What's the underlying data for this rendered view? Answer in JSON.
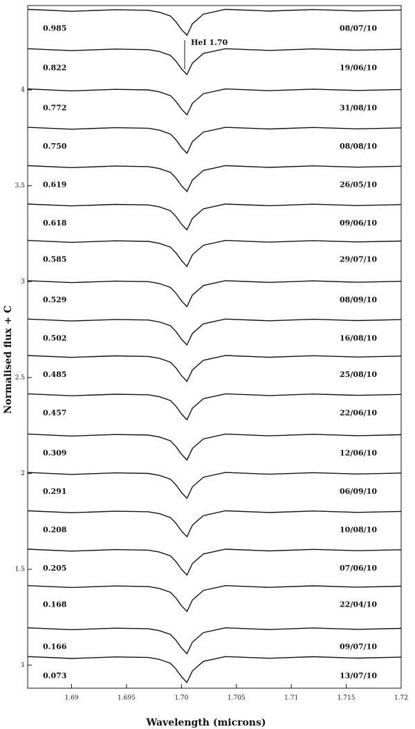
{
  "chart_data": {
    "type": "line",
    "xlabel": "Wavelength (microns)",
    "ylabel": "Normalised flux + C",
    "annotation": "HeI 1.70",
    "color": "#111111",
    "xlim": [
      1.686,
      1.72
    ],
    "ylim": [
      0.88,
      4.44
    ],
    "xticks": [
      1.69,
      1.695,
      {
        "value": 1.7,
        "label": "1.70"
      },
      1.705,
      1.71,
      1.715,
      1.72
    ],
    "yticks": [
      1,
      1.5,
      2,
      2.5,
      3,
      3.5,
      4
    ],
    "x": [
      1.686,
      1.69,
      1.694,
      1.697,
      1.698,
      1.699,
      1.6995,
      1.7,
      1.7005,
      1.701,
      1.702,
      1.704,
      1.708,
      1.712,
      1.716,
      1.72
    ],
    "series": [
      {
        "phase": "0.985",
        "date": "08/07/10",
        "values": [
          4.42,
          4.41,
          4.418,
          4.415,
          4.405,
          4.385,
          4.355,
          4.315,
          4.285,
          4.345,
          4.395,
          4.42,
          4.411,
          4.419,
          4.412,
          4.417
        ]
      },
      {
        "phase": "0.822",
        "date": "19/06/10",
        "values": [
          4.215,
          4.205,
          4.213,
          4.21,
          4.2,
          4.18,
          4.15,
          4.11,
          4.08,
          4.14,
          4.19,
          4.215,
          4.206,
          4.214,
          4.207,
          4.212
        ]
      },
      {
        "phase": "0.772",
        "date": "31/08/10",
        "values": [
          4.005,
          3.995,
          4.003,
          4.0,
          3.99,
          3.97,
          3.94,
          3.9,
          3.87,
          3.93,
          3.98,
          4.005,
          3.996,
          4.004,
          3.997,
          4.002
        ]
      },
      {
        "phase": "0.750",
        "date": "08/08/10",
        "values": [
          3.805,
          3.795,
          3.803,
          3.8,
          3.79,
          3.77,
          3.74,
          3.7,
          3.67,
          3.73,
          3.78,
          3.805,
          3.796,
          3.804,
          3.797,
          3.802
        ]
      },
      {
        "phase": "0.619",
        "date": "26/05/10",
        "values": [
          3.605,
          3.595,
          3.603,
          3.6,
          3.59,
          3.57,
          3.54,
          3.5,
          3.47,
          3.53,
          3.58,
          3.605,
          3.596,
          3.604,
          3.597,
          3.602
        ]
      },
      {
        "phase": "0.618",
        "date": "09/06/10",
        "values": [
          3.405,
          3.395,
          3.403,
          3.4,
          3.39,
          3.37,
          3.34,
          3.3,
          3.27,
          3.33,
          3.38,
          3.405,
          3.396,
          3.404,
          3.397,
          3.402
        ]
      },
      {
        "phase": "0.585",
        "date": "29/07/10",
        "values": [
          3.215,
          3.205,
          3.213,
          3.21,
          3.2,
          3.18,
          3.15,
          3.11,
          3.08,
          3.14,
          3.19,
          3.215,
          3.206,
          3.214,
          3.207,
          3.212
        ]
      },
      {
        "phase": "0.529",
        "date": "08/09/10",
        "values": [
          3.005,
          2.995,
          3.003,
          3.0,
          2.99,
          2.97,
          2.94,
          2.9,
          2.87,
          2.93,
          2.98,
          3.005,
          2.996,
          3.004,
          2.997,
          3.002
        ]
      },
      {
        "phase": "0.502",
        "date": "16/08/10",
        "values": [
          2.805,
          2.795,
          2.803,
          2.8,
          2.79,
          2.77,
          2.74,
          2.7,
          2.67,
          2.73,
          2.78,
          2.805,
          2.796,
          2.804,
          2.797,
          2.802
        ]
      },
      {
        "phase": "0.485",
        "date": "25/08/10",
        "values": [
          2.615,
          2.605,
          2.613,
          2.61,
          2.6,
          2.58,
          2.55,
          2.51,
          2.48,
          2.54,
          2.59,
          2.615,
          2.606,
          2.614,
          2.607,
          2.612
        ]
      },
      {
        "phase": "0.457",
        "date": "22/06/10",
        "values": [
          2.415,
          2.405,
          2.413,
          2.41,
          2.4,
          2.38,
          2.35,
          2.31,
          2.28,
          2.34,
          2.39,
          2.415,
          2.406,
          2.414,
          2.407,
          2.412
        ]
      },
      {
        "phase": "0.309",
        "date": "12/06/10",
        "values": [
          2.205,
          2.195,
          2.203,
          2.2,
          2.19,
          2.17,
          2.14,
          2.1,
          2.07,
          2.13,
          2.18,
          2.205,
          2.196,
          2.204,
          2.197,
          2.202
        ]
      },
      {
        "phase": "0.291",
        "date": "06/09/10",
        "values": [
          2.005,
          1.995,
          2.003,
          2.0,
          1.99,
          1.97,
          1.94,
          1.9,
          1.87,
          1.93,
          1.98,
          2.005,
          1.996,
          2.004,
          1.997,
          2.002
        ]
      },
      {
        "phase": "0.208",
        "date": "10/08/10",
        "values": [
          1.805,
          1.795,
          1.803,
          1.8,
          1.79,
          1.77,
          1.74,
          1.7,
          1.67,
          1.73,
          1.78,
          1.805,
          1.796,
          1.804,
          1.797,
          1.802
        ]
      },
      {
        "phase": "0.205",
        "date": "07/06/10",
        "values": [
          1.605,
          1.595,
          1.603,
          1.6,
          1.59,
          1.57,
          1.54,
          1.5,
          1.47,
          1.53,
          1.58,
          1.605,
          1.596,
          1.604,
          1.597,
          1.602
        ]
      },
      {
        "phase": "0.168",
        "date": "22/04/10",
        "values": [
          1.415,
          1.405,
          1.413,
          1.41,
          1.4,
          1.38,
          1.35,
          1.31,
          1.28,
          1.34,
          1.39,
          1.415,
          1.406,
          1.414,
          1.407,
          1.412
        ]
      },
      {
        "phase": "0.166",
        "date": "09/07/10",
        "values": [
          1.195,
          1.185,
          1.193,
          1.19,
          1.18,
          1.16,
          1.13,
          1.09,
          1.06,
          1.12,
          1.17,
          1.195,
          1.186,
          1.194,
          1.187,
          1.192
        ]
      },
      {
        "phase": "0.073",
        "date": "13/07/10",
        "values": [
          1.045,
          1.035,
          1.043,
          1.04,
          1.03,
          1.01,
          0.98,
          0.94,
          0.91,
          0.97,
          1.02,
          1.045,
          1.036,
          1.044,
          1.037,
          1.042
        ]
      }
    ]
  }
}
